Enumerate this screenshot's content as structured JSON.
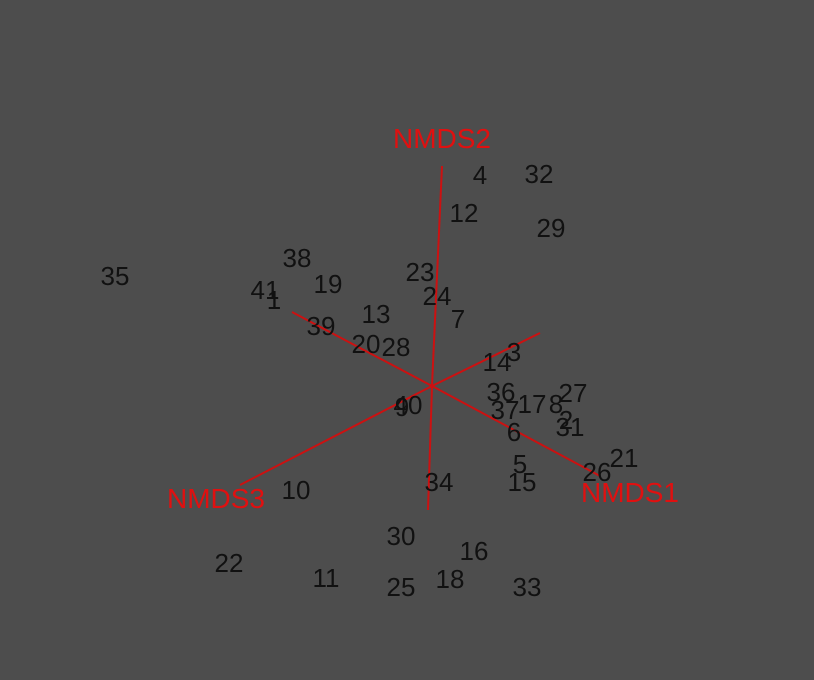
{
  "chart_data": {
    "type": "scatter",
    "colors": {
      "background": "#4d4d4d",
      "points": "#111111",
      "axes": "#cc1111"
    },
    "axes": [
      {
        "label": "NMDS1"
      },
      {
        "label": "NMDS2"
      },
      {
        "label": "NMDS3"
      }
    ],
    "points": [
      {
        "label": "1"
      },
      {
        "label": "2"
      },
      {
        "label": "3"
      },
      {
        "label": "4"
      },
      {
        "label": "5"
      },
      {
        "label": "6"
      },
      {
        "label": "7"
      },
      {
        "label": "8"
      },
      {
        "label": "9"
      },
      {
        "label": "10"
      },
      {
        "label": "11"
      },
      {
        "label": "12"
      },
      {
        "label": "13"
      },
      {
        "label": "14"
      },
      {
        "label": "15"
      },
      {
        "label": "16"
      },
      {
        "label": "17"
      },
      {
        "label": "18"
      },
      {
        "label": "19"
      },
      {
        "label": "20"
      },
      {
        "label": "21"
      },
      {
        "label": "22"
      },
      {
        "label": "23"
      },
      {
        "label": "24"
      },
      {
        "label": "25"
      },
      {
        "label": "26"
      },
      {
        "label": "27"
      },
      {
        "label": "28"
      },
      {
        "label": "29"
      },
      {
        "label": "30"
      },
      {
        "label": "31"
      },
      {
        "label": "32"
      },
      {
        "label": "33"
      },
      {
        "label": "34"
      },
      {
        "label": "35"
      },
      {
        "label": "36"
      },
      {
        "label": "37"
      },
      {
        "label": "38"
      },
      {
        "label": "39"
      },
      {
        "label": "40"
      },
      {
        "label": "41"
      }
    ]
  }
}
